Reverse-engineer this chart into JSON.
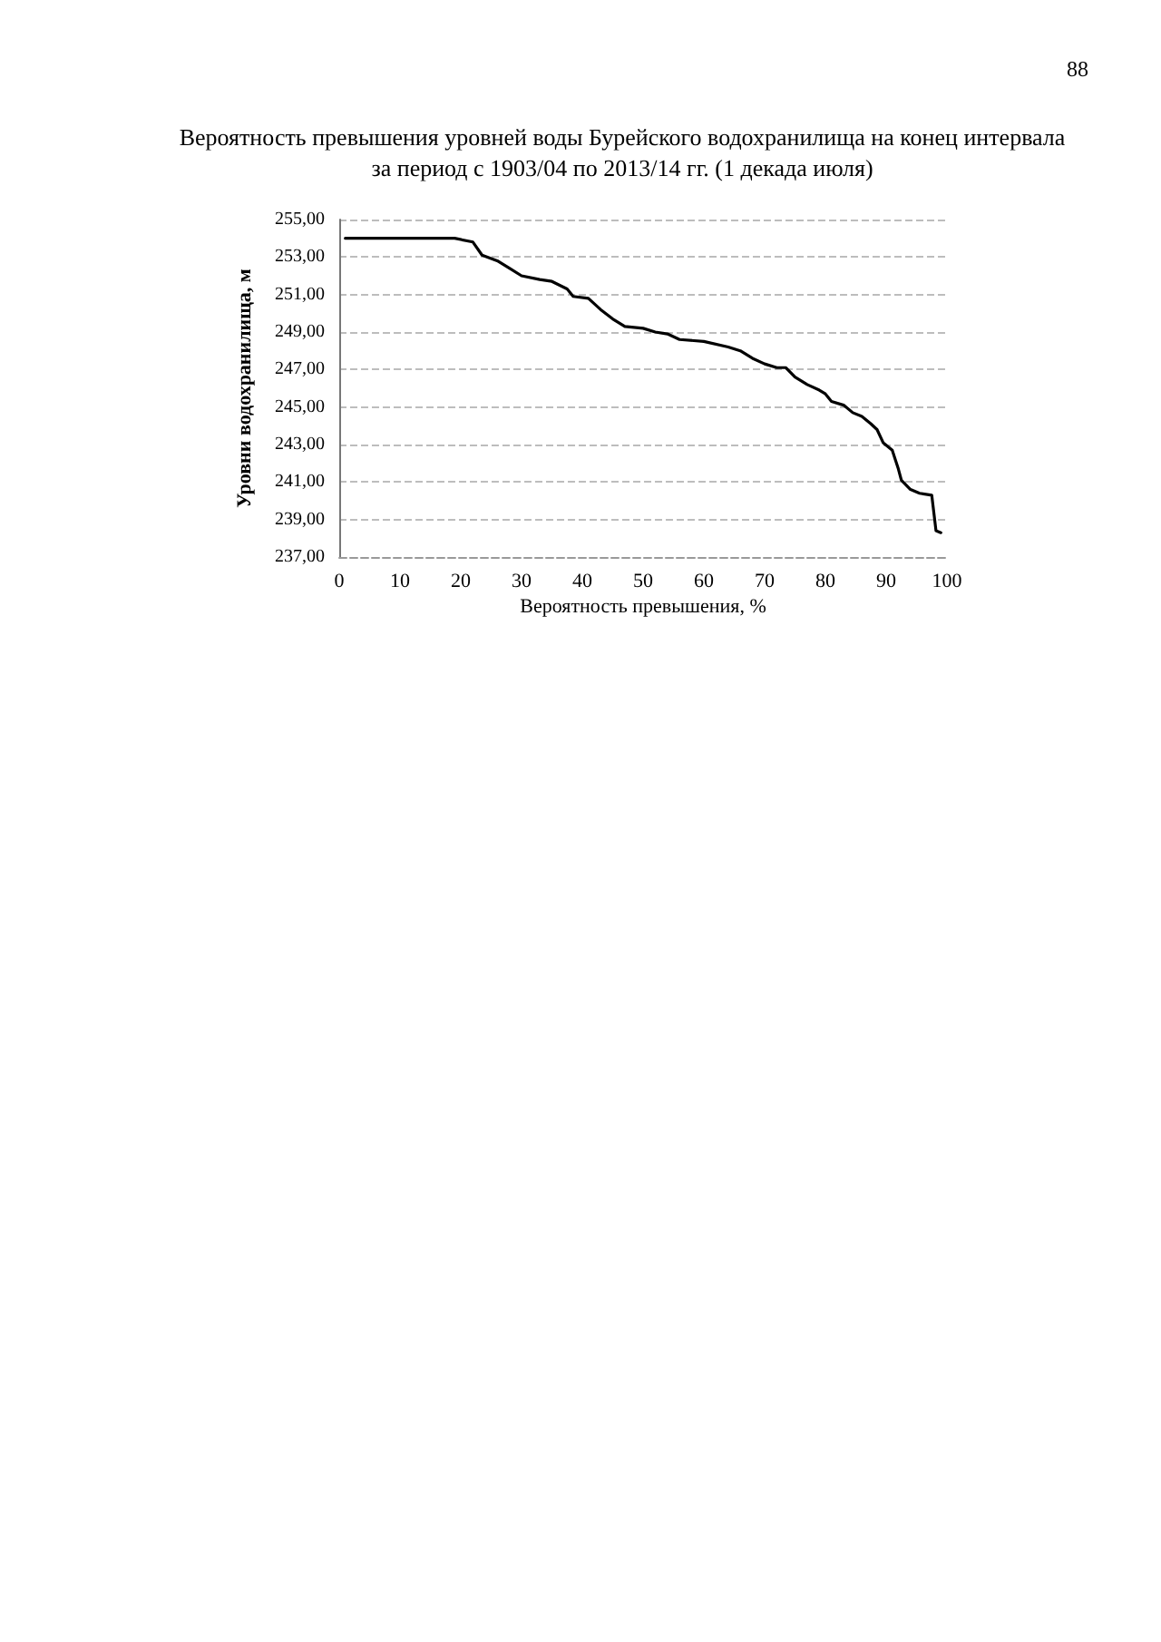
{
  "chart_data": {
    "type": "line",
    "title": "Вероятность превышения уровней воды Бурейского водохранилища на конец интервала\nза период с 1903/04 по 2013/14 гг. (1 декада июля)",
    "xlabel": "Вероятность превышения, %",
    "ylabel": "Уровни водохранилища, м",
    "annotations": [
      "88"
    ],
    "series": [
      {
        "color": "#000000",
        "x": [
          1,
          19,
          22,
          23.5,
          26,
          28,
          30,
          33,
          35,
          37.5,
          38.5,
          41,
          43,
          45,
          47,
          50,
          52,
          54,
          56,
          60,
          64,
          66,
          68,
          70,
          72,
          73.5,
          75,
          77,
          79,
          80,
          81,
          83,
          84.5,
          86,
          87.5,
          88.5,
          89.5,
          91,
          92,
          92.5,
          94,
          95.5,
          97.5,
          98.2,
          99
        ],
        "values": [
          254.0,
          254.0,
          253.8,
          253.1,
          252.8,
          252.4,
          252.0,
          251.8,
          251.7,
          251.3,
          250.9,
          250.8,
          250.2,
          249.7,
          249.3,
          249.2,
          249.0,
          248.9,
          248.6,
          248.5,
          248.2,
          248.0,
          247.6,
          247.3,
          247.1,
          247.1,
          246.6,
          246.2,
          245.9,
          245.7,
          245.3,
          245.1,
          244.7,
          244.5,
          244.1,
          243.8,
          243.1,
          242.7,
          241.7,
          241.1,
          240.6,
          240.4,
          240.3,
          238.4,
          238.3
        ]
      }
    ],
    "xlim": [
      0,
      100
    ],
    "xticks": [
      0,
      10,
      20,
      30,
      40,
      50,
      60,
      70,
      80,
      90,
      100
    ],
    "ylim": [
      237,
      255
    ],
    "yticks": [
      {
        "value": 237,
        "label": "237,00"
      },
      {
        "value": 239,
        "label": "239,00"
      },
      {
        "value": 241,
        "label": "241,00"
      },
      {
        "value": 243,
        "label": "243,00"
      },
      {
        "value": 245,
        "label": "245,00"
      },
      {
        "value": 247,
        "label": "247,00"
      },
      {
        "value": 249,
        "label": "249,00"
      },
      {
        "value": 251,
        "label": "251,00"
      },
      {
        "value": 253,
        "label": "253,00"
      },
      {
        "value": 255,
        "label": "255,00"
      }
    ],
    "grid": "y",
    "marker": "none",
    "line_style": "solid"
  }
}
